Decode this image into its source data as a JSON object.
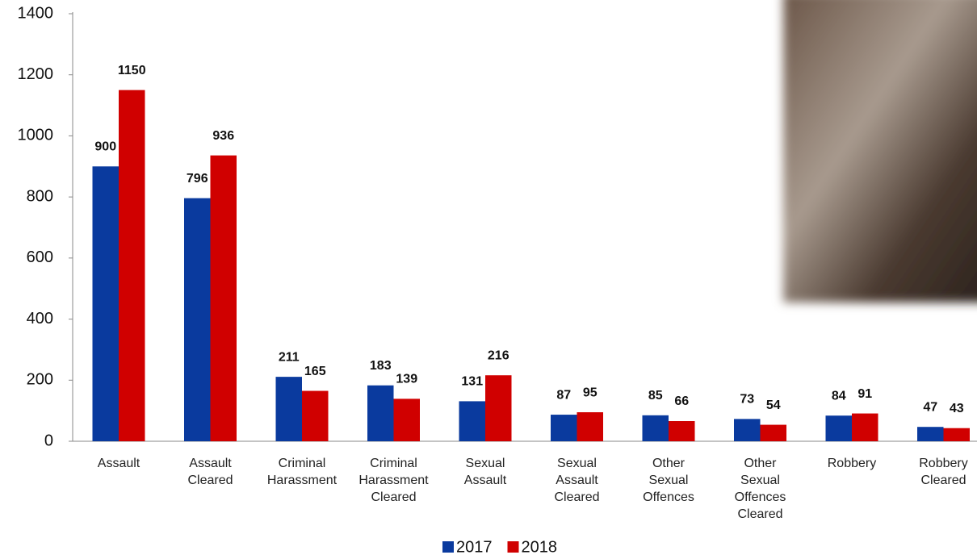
{
  "chart_data": {
    "type": "bar",
    "categories": [
      "Assault",
      "Assault Cleared",
      "Criminal Harassment",
      "Criminal Harassment Cleared",
      "Sexual Assault",
      "Sexual Assault Cleared",
      "Other Sexual Offences",
      "Other Sexual Offences Cleared",
      "Robbery",
      "Robbery Cleared"
    ],
    "series": [
      {
        "name": "2017",
        "color": "#0a3a9e",
        "values": [
          900,
          796,
          211,
          183,
          131,
          87,
          85,
          73,
          84,
          47
        ]
      },
      {
        "name": "2018",
        "color": "#d00000",
        "values": [
          1150,
          936,
          165,
          139,
          216,
          95,
          66,
          54,
          91,
          43
        ]
      }
    ],
    "ylim": [
      0,
      1400
    ],
    "yticks": [
      0,
      200,
      400,
      600,
      800,
      1000,
      1200,
      1400
    ],
    "legend": "bottom"
  }
}
